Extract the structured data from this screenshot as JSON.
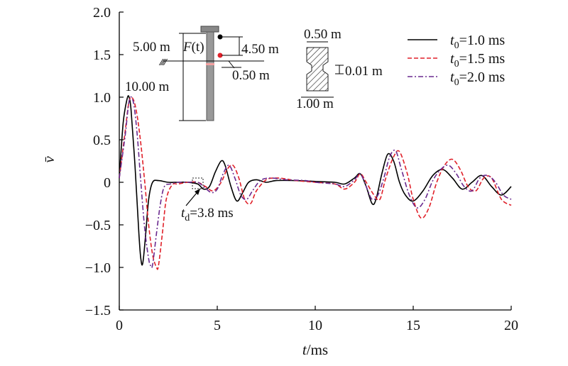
{
  "chart_data": {
    "type": "line",
    "xlabel_var": "t",
    "xlabel_unit": "/ms",
    "ylabel": "v̄",
    "xlim": [
      0,
      20
    ],
    "ylim": [
      -1.5,
      2.0
    ],
    "xticks": [
      "0",
      "5",
      "10",
      "15",
      "20"
    ],
    "xtick_values": [
      0,
      5,
      10,
      15,
      20
    ],
    "yticks": [
      "−1.5",
      "−1.0",
      "−0.5",
      "0",
      "0.5",
      "1.0",
      "1.5",
      "2.0"
    ],
    "ytick_values": [
      -1.5,
      -1.0,
      -0.5,
      0,
      0.5,
      1.0,
      1.5,
      2.0
    ],
    "legend_position": "top-right",
    "series": [
      {
        "name": "t0=1.0 ms",
        "legend_var": "t",
        "legend_sub": "0",
        "legend_rest": "=1.0 ms",
        "color": "#000000",
        "dash": "solid",
        "x": [
          0,
          0.2,
          0.4,
          0.5,
          0.6,
          0.8,
          1.0,
          1.1,
          1.2,
          1.35,
          1.5,
          1.7,
          2.0,
          2.5,
          3.0,
          3.5,
          4.0,
          4.3,
          4.6,
          4.9,
          5.2,
          5.4,
          5.7,
          6.0,
          6.3,
          6.6,
          7.0,
          7.5,
          8.0,
          9.0,
          10.0,
          11.0,
          11.5,
          12.0,
          12.3,
          12.6,
          12.9,
          13.1,
          13.4,
          13.7,
          14.0,
          14.3,
          14.6,
          15.0,
          15.5,
          16.0,
          16.5,
          17.0,
          17.5,
          18.0,
          18.5,
          19.0,
          19.5,
          20.0
        ],
        "y": [
          0.05,
          0.7,
          0.98,
          1.0,
          0.85,
          0.2,
          -0.6,
          -0.9,
          -0.95,
          -0.6,
          -0.2,
          0.0,
          0.02,
          0.0,
          0.0,
          0.0,
          -0.02,
          -0.08,
          -0.05,
          0.12,
          0.25,
          0.2,
          -0.05,
          -0.22,
          -0.12,
          0.0,
          0.03,
          0.0,
          0.02,
          0.02,
          0.01,
          0.0,
          -0.02,
          0.05,
          0.1,
          -0.05,
          -0.25,
          -0.2,
          0.1,
          0.33,
          0.25,
          0.0,
          -0.15,
          -0.22,
          -0.1,
          0.08,
          0.15,
          0.05,
          -0.08,
          0.0,
          0.08,
          -0.05,
          -0.15,
          -0.05
        ]
      },
      {
        "name": "t0=1.5 ms",
        "legend_var": "t",
        "legend_sub": "0",
        "legend_rest": "=1.5 ms",
        "color": "#e0212a",
        "dash": "dashed",
        "x": [
          0,
          0.3,
          0.5,
          0.7,
          0.9,
          1.1,
          1.3,
          1.5,
          1.7,
          1.9,
          2.0,
          2.2,
          2.4,
          2.7,
          3.0,
          3.5,
          4.0,
          4.4,
          4.8,
          5.2,
          5.5,
          5.8,
          6.1,
          6.4,
          6.7,
          7.0,
          7.5,
          8.0,
          8.5,
          9.0,
          10.0,
          11.0,
          11.5,
          12.0,
          12.3,
          12.6,
          13.0,
          13.3,
          13.6,
          14.0,
          14.3,
          14.7,
          15.0,
          15.4,
          15.8,
          16.2,
          16.6,
          17.0,
          17.4,
          17.8,
          18.2,
          18.6,
          19.0,
          19.5,
          20.0
        ],
        "y": [
          0.05,
          0.6,
          0.95,
          0.98,
          0.8,
          0.45,
          0.0,
          -0.5,
          -0.85,
          -1.0,
          -0.98,
          -0.6,
          -0.2,
          -0.03,
          -0.02,
          0.0,
          0.0,
          -0.05,
          -0.1,
          0.0,
          0.15,
          0.2,
          0.05,
          -0.2,
          -0.25,
          -0.1,
          0.03,
          0.05,
          0.04,
          0.02,
          0.0,
          -0.02,
          -0.08,
          0.0,
          0.1,
          0.0,
          -0.15,
          -0.2,
          0.05,
          0.3,
          0.36,
          0.1,
          -0.2,
          -0.42,
          -0.3,
          0.0,
          0.2,
          0.27,
          0.15,
          -0.05,
          -0.1,
          0.05,
          0.05,
          -0.2,
          -0.27
        ]
      },
      {
        "name": "t0=2.0 ms",
        "legend_var": "t",
        "legend_sub": "0",
        "legend_rest": "=2.0 ms",
        "color": "#6a2a8f",
        "dash": "dashdot",
        "x": [
          0,
          0.3,
          0.5,
          0.7,
          0.9,
          1.1,
          1.3,
          1.5,
          1.6,
          1.7,
          1.9,
          2.1,
          2.3,
          2.6,
          3.0,
          3.5,
          4.0,
          4.3,
          4.7,
          5.0,
          5.3,
          5.6,
          5.9,
          6.2,
          6.5,
          6.8,
          7.2,
          7.7,
          8.5,
          9.5,
          10.0,
          11.0,
          11.5,
          12.0,
          12.3,
          12.6,
          12.9,
          13.2,
          13.5,
          13.8,
          14.1,
          14.4,
          14.8,
          15.2,
          15.6,
          16.0,
          16.4,
          16.8,
          17.2,
          17.6,
          18.0,
          18.4,
          18.8,
          19.2,
          19.6,
          20.0
        ],
        "y": [
          0.05,
          0.55,
          0.95,
          0.96,
          0.6,
          0.0,
          -0.55,
          -0.9,
          -0.98,
          -0.97,
          -0.6,
          -0.25,
          -0.05,
          -0.02,
          0.0,
          0.0,
          0.0,
          -0.05,
          -0.12,
          -0.08,
          0.1,
          0.2,
          0.05,
          -0.15,
          -0.2,
          -0.1,
          0.02,
          0.05,
          0.03,
          0.02,
          0.0,
          -0.02,
          -0.05,
          0.03,
          0.1,
          -0.05,
          -0.2,
          -0.15,
          0.05,
          0.3,
          0.37,
          0.15,
          -0.15,
          -0.3,
          -0.2,
          0.02,
          0.15,
          0.2,
          0.1,
          -0.05,
          -0.1,
          0.05,
          0.08,
          0.0,
          -0.15,
          -0.2
        ]
      }
    ],
    "annotations": {
      "td_var": "t",
      "td_sub": "d",
      "td_rest": "=3.8 ms",
      "td_point": [
        4.2,
        -0.1
      ]
    },
    "inset": {
      "dim_5": "5.00 m",
      "force_var": "F",
      "force_arg": "(t)",
      "dim_450": "4.50 m",
      "dim_050_low": "0.50 m",
      "dim_10": "10.00 m",
      "dim_050_top": "0.50 m",
      "dim_001": "0.01 m",
      "dim_100": "1.00 m"
    }
  }
}
